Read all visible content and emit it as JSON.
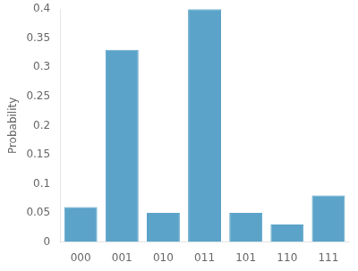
{
  "chart_data": {
    "type": "bar",
    "categories": [
      "000",
      "001",
      "010",
      "011",
      "101",
      "110",
      "111"
    ],
    "values": [
      0.06,
      0.33,
      0.05,
      0.4,
      0.05,
      0.03,
      0.08
    ],
    "color": "#5BA3C9",
    "ylabel": "Probability",
    "ylim": [
      0,
      0.4
    ],
    "yticks": [
      0,
      0.05,
      0.1,
      0.15,
      0.2,
      0.25,
      0.3,
      0.35,
      0.4
    ],
    "grid": false
  }
}
